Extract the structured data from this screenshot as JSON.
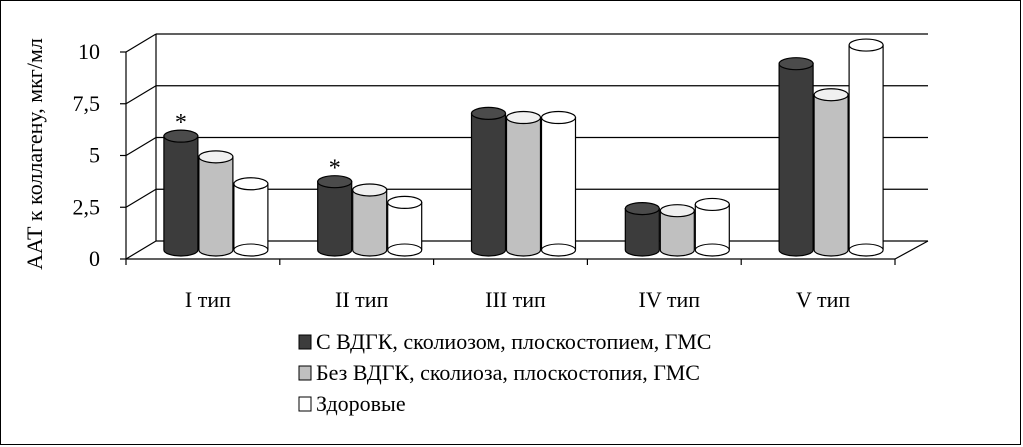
{
  "chart_data": {
    "type": "bar",
    "title": "",
    "xlabel": "",
    "ylabel": "ААТ к коллагену, мкг/мл",
    "ylim": [
      0,
      10
    ],
    "yticks": [
      "0",
      "2,5",
      "5",
      "7,5",
      "10"
    ],
    "ytick_values": [
      0,
      2.5,
      5,
      7.5,
      10
    ],
    "categories": [
      "I тип",
      "II тип",
      "III тип",
      "IV тип",
      "V тип"
    ],
    "series": [
      {
        "name": "С ВДГК, сколиозом, плоскостопием, ГМС",
        "values": [
          5.5,
          3.3,
          6.6,
          2.0,
          9.0
        ],
        "color": "#3c3c3c"
      },
      {
        "name": "Без ВДГК, сколиоза, плоскостопия, ГМС",
        "values": [
          4.5,
          2.9,
          6.4,
          1.9,
          7.5
        ],
        "color": "#c0c0c0"
      },
      {
        "name": "Здоровые",
        "values": [
          3.2,
          2.3,
          6.4,
          2.2,
          9.9
        ],
        "color": "#ffffff"
      }
    ],
    "annotations": [
      {
        "category": "I тип",
        "text": "*"
      },
      {
        "category": "II тип",
        "text": "*"
      }
    ],
    "grid": true,
    "legend_position": "bottom",
    "style": "3d-cylinder"
  }
}
